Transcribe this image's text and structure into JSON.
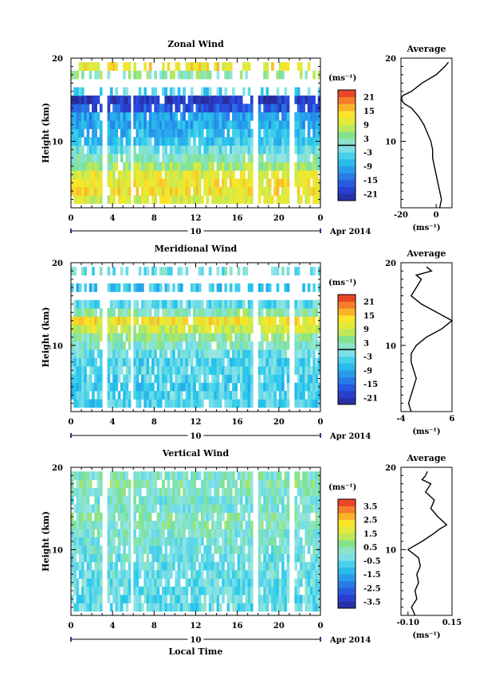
{
  "figure": {
    "xlabel": "Local Time",
    "date_label": "Apr 2014",
    "day_label": "10"
  },
  "chart_data": [
    {
      "type": "heatmap",
      "title": "Zonal Wind",
      "ylabel": "Height (km)",
      "xlabel": "Local Time",
      "x_range": [
        0,
        24
      ],
      "x_ticks": [
        "0",
        "4",
        "8",
        "12",
        "16",
        "20",
        "0"
      ],
      "y_range": [
        2,
        20
      ],
      "y_ticks": [
        "10",
        "20"
      ],
      "colorbar": {
        "unit": "(ms⁻¹)",
        "range": [
          -24,
          24
        ],
        "ticks": [
          "21",
          "15",
          "9",
          "3",
          "-3",
          "-9",
          "-15",
          "-21"
        ],
        "zero_line": true
      },
      "data_gaps_hours": [
        [
          3.0,
          3.3
        ],
        [
          5.8,
          6.0
        ],
        [
          17.6,
          17.9
        ],
        [
          21.0,
          21.5
        ]
      ],
      "profile_bands": [
        {
          "h": 3,
          "v": 10
        },
        {
          "h": 4,
          "v": 12
        },
        {
          "h": 5,
          "v": 12
        },
        {
          "h": 6,
          "v": 11
        },
        {
          "h": 7,
          "v": 6
        },
        {
          "h": 8,
          "v": 2
        },
        {
          "h": 9,
          "v": -2
        },
        {
          "h": 10,
          "v": -6
        },
        {
          "h": 11,
          "v": -8
        },
        {
          "h": 12,
          "v": -9
        },
        {
          "h": 13,
          "v": -10
        },
        {
          "h": 14,
          "v": -17
        },
        {
          "h": 15,
          "v": -21
        },
        {
          "h": 16,
          "v": -4
        },
        {
          "h": 17,
          "v": null
        },
        {
          "h": 18,
          "v": 3
        },
        {
          "h": 19,
          "v": 12
        }
      ],
      "average_profile": {
        "title": "Average",
        "xlabel": "(ms⁻¹)",
        "x_ticks": [
          "-20",
          "0"
        ],
        "x_range": [
          -20,
          9
        ],
        "heights": [
          2,
          3,
          4,
          5,
          6,
          7,
          8,
          9,
          10,
          11,
          12,
          13,
          14,
          14.5,
          15,
          15.5,
          16,
          17,
          18,
          19,
          19.5
        ],
        "values": [
          2,
          3,
          2,
          1,
          0,
          -1,
          -2,
          -2,
          -3,
          -5,
          -7,
          -10,
          -14,
          -18,
          -20,
          -19,
          -14,
          -8,
          0,
          5,
          7
        ]
      }
    },
    {
      "type": "heatmap",
      "title": "Meridional Wind",
      "ylabel": "Height (km)",
      "xlabel": "Local Time",
      "x_range": [
        0,
        24
      ],
      "x_ticks": [
        "0",
        "4",
        "8",
        "12",
        "16",
        "20",
        "0"
      ],
      "y_range": [
        2,
        20
      ],
      "y_ticks": [
        "10",
        "20"
      ],
      "colorbar": {
        "unit": "(ms⁻¹)",
        "range": [
          -24,
          24
        ],
        "ticks": [
          "21",
          "15",
          "9",
          "3",
          "-3",
          "-9",
          "-15",
          "-21"
        ],
        "zero_line": true
      },
      "data_gaps_hours": [
        [
          3.0,
          3.3
        ],
        [
          5.8,
          6.0
        ],
        [
          17.6,
          17.9
        ],
        [
          21.0,
          21.5
        ]
      ],
      "profile_bands": [
        {
          "h": 3,
          "v": -5
        },
        {
          "h": 4,
          "v": -4
        },
        {
          "h": 5,
          "v": -5
        },
        {
          "h": 6,
          "v": -4
        },
        {
          "h": 7,
          "v": -3
        },
        {
          "h": 8,
          "v": -4
        },
        {
          "h": 9,
          "v": -2
        },
        {
          "h": 10,
          "v": 1
        },
        {
          "h": 11,
          "v": 4
        },
        {
          "h": 12,
          "v": 9
        },
        {
          "h": 13,
          "v": 12
        },
        {
          "h": 14,
          "v": 3
        },
        {
          "h": 15,
          "v": -3
        },
        {
          "h": 16,
          "v": null
        },
        {
          "h": 17,
          "v": -6
        },
        {
          "h": 18,
          "v": null
        },
        {
          "h": 19,
          "v": -2
        }
      ],
      "average_profile": {
        "title": "Average",
        "xlabel": "(ms⁻¹)",
        "x_ticks": [
          "-4",
          "6"
        ],
        "x_range": [
          -4,
          6
        ],
        "heights": [
          2,
          3,
          4,
          5,
          6,
          7,
          8,
          9,
          10,
          11,
          12,
          12.5,
          13,
          14,
          15,
          16,
          17,
          18,
          18.5,
          19,
          19.5
        ],
        "values": [
          -2,
          -2.5,
          -2,
          -1.5,
          -1,
          -1.5,
          -2,
          -2,
          -1,
          1,
          4,
          5,
          6,
          3,
          0,
          -2,
          -1,
          0,
          -1,
          2,
          1
        ]
      }
    },
    {
      "type": "heatmap",
      "title": "Vertical Wind",
      "ylabel": "Height (km)",
      "xlabel": "Local Time",
      "x_range": [
        0,
        24
      ],
      "x_ticks": [
        "0",
        "4",
        "8",
        "12",
        "16",
        "20",
        "0"
      ],
      "y_range": [
        2,
        20
      ],
      "y_ticks": [
        "10",
        "20"
      ],
      "colorbar": {
        "unit": "(ms⁻¹)",
        "range": [
          -4,
          4
        ],
        "ticks": [
          "3.5",
          "2.5",
          "1.5",
          "0.5",
          "-0.5",
          "-1.5",
          "-2.5",
          "-3.5"
        ],
        "zero_line": false
      },
      "data_gaps_hours": [
        [
          3.0,
          3.3
        ],
        [
          5.8,
          6.0
        ],
        [
          17.6,
          17.9
        ],
        [
          21.0,
          21.5
        ]
      ],
      "profile_bands": [
        {
          "h": 3,
          "v": -0.5
        },
        {
          "h": 4,
          "v": -0.5
        },
        {
          "h": 5,
          "v": -0.4
        },
        {
          "h": 6,
          "v": -0.4
        },
        {
          "h": 7,
          "v": -0.3
        },
        {
          "h": 8,
          "v": -0.3
        },
        {
          "h": 9,
          "v": -0.2
        },
        {
          "h": 10,
          "v": -0.1
        },
        {
          "h": 11,
          "v": 0.0
        },
        {
          "h": 12,
          "v": 0.1
        },
        {
          "h": 13,
          "v": 0.3
        },
        {
          "h": 14,
          "v": 0.3
        },
        {
          "h": 15,
          "v": 0.1
        },
        {
          "h": 16,
          "v": 0.0
        },
        {
          "h": 17,
          "v": 0.2
        },
        {
          "h": 18,
          "v": 0.4
        },
        {
          "h": 19,
          "v": 0.2
        }
      ],
      "average_profile": {
        "title": "Average",
        "xlabel": "(ms⁻¹)",
        "x_ticks": [
          "-0.10",
          "0.15"
        ],
        "x_range": [
          -0.14,
          0.15
        ],
        "heights": [
          2,
          3,
          4,
          5,
          6,
          7,
          8,
          9,
          10,
          11,
          12,
          12.5,
          13,
          14,
          15,
          16,
          17,
          18,
          18.5,
          19,
          19.5
        ],
        "values": [
          -0.06,
          -0.08,
          -0.05,
          -0.06,
          -0.04,
          -0.05,
          -0.03,
          -0.04,
          -0.1,
          -0.02,
          0.05,
          0.08,
          0.12,
          0.07,
          0.03,
          0.05,
          0.0,
          0.03,
          -0.02,
          0.0,
          0.01
        ]
      }
    }
  ]
}
